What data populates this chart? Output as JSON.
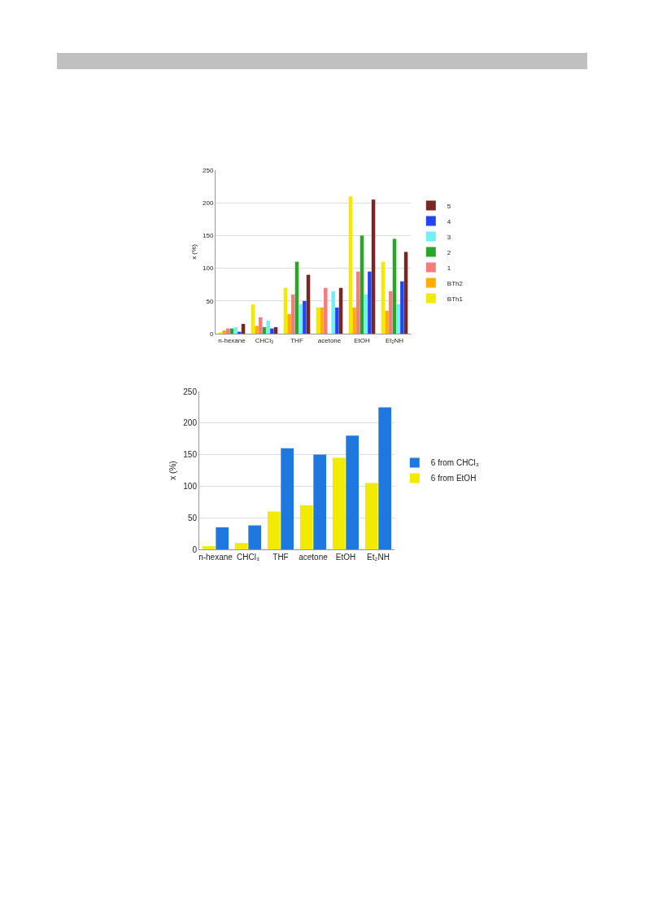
{
  "chart_data": [
    {
      "type": "bar",
      "categories": [
        "n-hexane",
        "CHCl₃",
        "THF",
        "acetone",
        "EtOH",
        "Et₂NH"
      ],
      "ylabel": "x (%)",
      "ylim": [
        0,
        250
      ],
      "yticks": [
        0,
        50,
        100,
        150,
        200,
        250
      ],
      "grid": "y",
      "legend": "right",
      "series": [
        {
          "name": "BTh1",
          "color": "#f2ea00",
          "values": [
            2,
            45,
            70,
            40,
            210,
            110
          ]
        },
        {
          "name": "BTh2",
          "color": "#ffad00",
          "values": [
            5,
            12,
            30,
            40,
            40,
            35
          ]
        },
        {
          "name": "1",
          "color": "#f47c7c",
          "values": [
            8,
            25,
            60,
            70,
            95,
            65
          ]
        },
        {
          "name": "2",
          "color": "#2aa52a",
          "values": [
            8,
            10,
            110,
            null,
            150,
            145
          ]
        },
        {
          "name": "3",
          "color": "#6ff0f2",
          "values": [
            10,
            20,
            45,
            65,
            60,
            45
          ]
        },
        {
          "name": "4",
          "color": "#1f45f5",
          "values": [
            3,
            8,
            50,
            40,
            95,
            80
          ]
        },
        {
          "name": "5",
          "color": "#7a2626",
          "values": [
            15,
            10,
            90,
            70,
            205,
            125
          ]
        }
      ]
    },
    {
      "type": "bar",
      "categories": [
        "n-hexane",
        "CHCl₃",
        "THF",
        "acetone",
        "EtOH",
        "Et₂NH"
      ],
      "ylabel": "x (%)",
      "ylim": [
        0,
        250
      ],
      "yticks": [
        0,
        50,
        100,
        150,
        200,
        250
      ],
      "grid": "y",
      "legend": "right",
      "series": [
        {
          "name": "6 from EtOH",
          "color": "#f2ea00",
          "values": [
            5,
            10,
            60,
            70,
            145,
            105
          ]
        },
        {
          "name": "6 from CHCl₃",
          "color": "#1f78e0",
          "values": [
            35,
            38,
            160,
            150,
            180,
            225
          ]
        }
      ]
    }
  ]
}
